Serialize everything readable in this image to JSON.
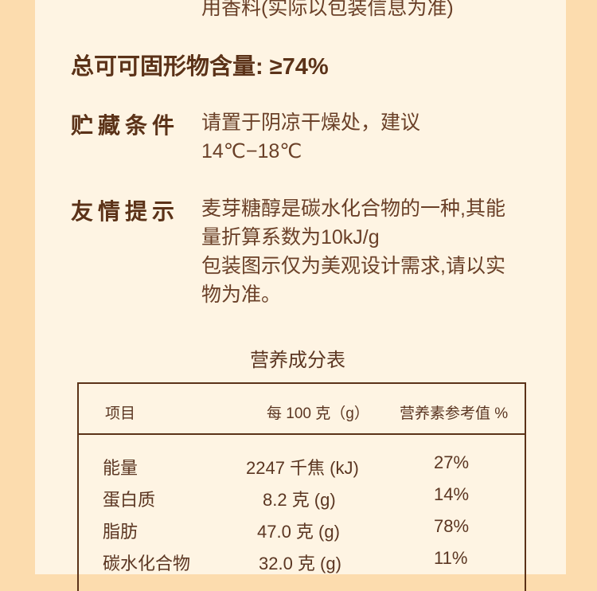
{
  "ingredients_tail": "用香料(实际以包装信息为准)",
  "total_cocoa_solids": {
    "label": "总可可固形物含量:",
    "value": "≥74%"
  },
  "storage": {
    "label": "贮藏条件",
    "lines": [
      "请置于阴凉干燥处，建议",
      "14℃−18℃"
    ]
  },
  "tips": {
    "label": "友情提示",
    "lines": [
      "麦芽糖醇是碳水化合物的一种,其能",
      "量折算系数为10kJ/g",
      "包装图示仅为美观设计需求,请以实",
      "物为准。"
    ]
  },
  "nutrition": {
    "title": "营养成分表",
    "headers": [
      "项目",
      "每 100 克（g）",
      "营养素参考值 %"
    ],
    "rows": [
      [
        "能量",
        "2247 千焦 (kJ)",
        "27%"
      ],
      [
        "蛋白质",
        "8.2 克 (g)",
        "14%"
      ],
      [
        "脂肪",
        "47.0 克 (g)",
        "78%"
      ],
      [
        "碳水化合物",
        "32.0 克 (g)",
        "11%"
      ]
    ]
  },
  "colors": {
    "outer_bg": "#fcdcae",
    "panel_bg": "#fef4e3",
    "text": "#5b3622"
  }
}
